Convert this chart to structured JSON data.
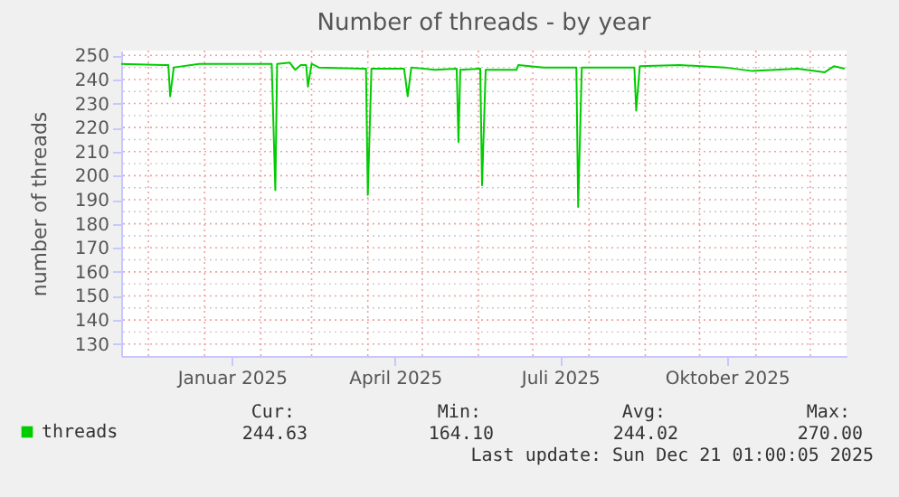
{
  "chart_data": {
    "type": "line",
    "title": "Number of threads - by year",
    "ylabel": "number of threads",
    "x": [
      "2024-11-16",
      "2024-12-09",
      "2024-12-12",
      "2024-12-13",
      "2024-12-15",
      "2024-12-29",
      "2025-02-07",
      "2025-02-09",
      "2025-02-10",
      "2025-02-17",
      "2025-02-20",
      "2025-02-23",
      "2025-02-26",
      "2025-02-27",
      "2025-03-01",
      "2025-03-05",
      "2025-03-29",
      "2025-03-31",
      "2025-04-01",
      "2025-04-03",
      "2025-04-21",
      "2025-04-23",
      "2025-04-25",
      "2025-05-08",
      "2025-05-20",
      "2025-05-21",
      "2025-05-22",
      "2025-06-02",
      "2025-06-03",
      "2025-06-05",
      "2025-06-22",
      "2025-06-23",
      "2025-07-07",
      "2025-07-25",
      "2025-07-26",
      "2025-07-28",
      "2025-08-26",
      "2025-08-27",
      "2025-08-29",
      "2025-09-20",
      "2025-10-15",
      "2025-10-30",
      "2025-11-24",
      "2025-12-09",
      "2025-12-14",
      "2025-12-20"
    ],
    "series": [
      {
        "name": "threads",
        "color": "#00cc00",
        "values": [
          246.5,
          246,
          246,
          233,
          245,
          246.5,
          246.5,
          194,
          246.5,
          247,
          244,
          246,
          246,
          237,
          246.5,
          245,
          244.5,
          244.5,
          192,
          244.5,
          244.5,
          233,
          245,
          244,
          244.5,
          214,
          244,
          244.5,
          196,
          244,
          244,
          246,
          245,
          245,
          187,
          245,
          245,
          227,
          245.5,
          246,
          245,
          243.5,
          244.5,
          243,
          245.5,
          244.5
        ]
      }
    ],
    "xlim": [
      "2024-11-16",
      "2025-12-21"
    ],
    "xticks": [
      {
        "value": "2025-01-16",
        "label": "Januar 2025"
      },
      {
        "value": "2025-04-16",
        "label": "April 2025"
      },
      {
        "value": "2025-07-16",
        "label": "Juli 2025"
      },
      {
        "value": "2025-10-16",
        "label": "Oktober 2025"
      }
    ],
    "ylim": [
      125,
      252
    ],
    "yticks": [
      130,
      140,
      150,
      160,
      170,
      180,
      190,
      200,
      210,
      220,
      230,
      240,
      250
    ],
    "grid": true,
    "legend": "bottom",
    "line_style": "solid",
    "marker": "none",
    "annotations": [
      "Cur:",
      "Min:",
      "Avg:",
      "Max:",
      "244.63",
      "164.10",
      "244.02",
      "270.00",
      "Last update: Sun Dec 21 01:00:05 2025"
    ]
  }
}
